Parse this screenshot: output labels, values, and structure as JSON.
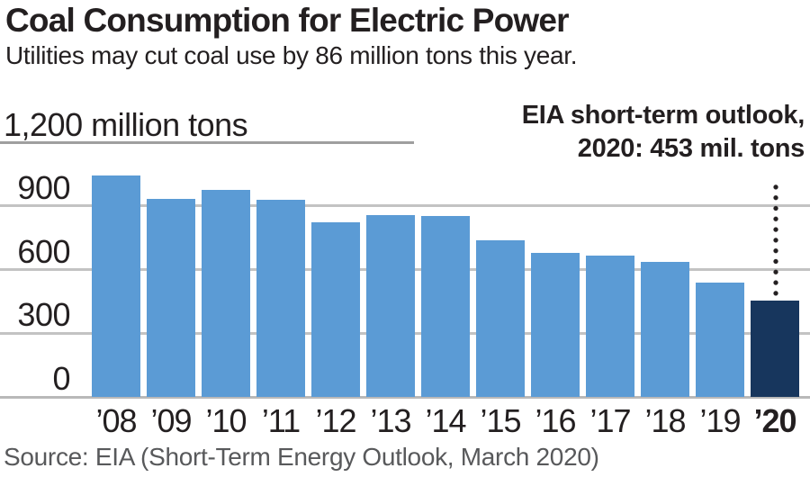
{
  "header": {
    "title": "Coal Consumption for Electric Power",
    "subtitle": "Utilities may cut coal use by 86 million tons this year."
  },
  "chart_data": {
    "type": "bar",
    "title": "Coal Consumption for Electric Power",
    "subtitle": "Utilities may cut coal use by 86 million tons this year.",
    "unit_label": "1,200 million tons",
    "categories": [
      "’08",
      "’09",
      "’10",
      "’11",
      "’12",
      "’13",
      "’14",
      "’15",
      "’16",
      "’17",
      "’18",
      "’19",
      "’20"
    ],
    "values": [
      1041,
      934,
      975,
      929,
      824,
      858,
      852,
      739,
      679,
      665,
      636,
      539,
      453
    ],
    "highlight_index": 12,
    "xlabel": "",
    "ylabel": "million tons",
    "ylim": [
      0,
      1200
    ],
    "y_gridline_values": [
      1200,
      900,
      600,
      300,
      0
    ],
    "y_tick_labels": [
      "900",
      "600",
      "300",
      "0"
    ],
    "y_tick_values": [
      900,
      600,
      300,
      0
    ],
    "grid": true,
    "legend": "none",
    "annotation": {
      "line1": "EIA short-term outlook,",
      "line2": "2020: 453 mil. tons"
    },
    "colors": {
      "bar": "#5b9bd5",
      "highlight_bar": "#17365d",
      "gridline": "#c3c3c3",
      "top_gridline": "#9f9f9f",
      "baseline": "#b9b9b9",
      "text": "#231f20",
      "source_text": "#58595b",
      "dotted_line": "#231f20"
    }
  },
  "footer": {
    "source": "Source: EIA (Short-Term Energy Outlook, March 2020)"
  }
}
